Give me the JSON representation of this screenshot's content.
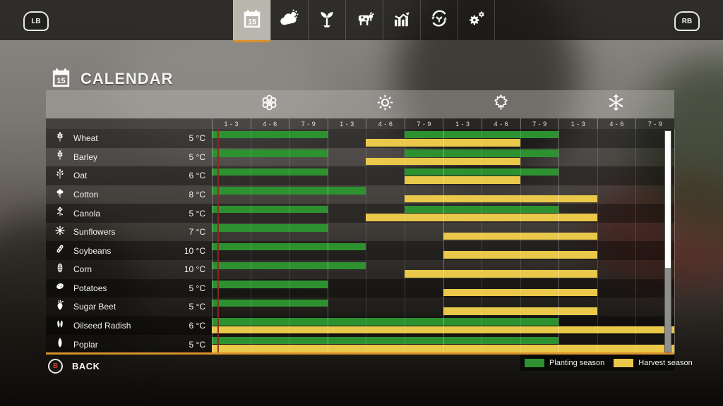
{
  "topbar": {
    "left_bumper_label": "LB",
    "right_bumper_label": "RB",
    "calendar_badge_day": "15",
    "tabs": [
      {
        "name": "calendar",
        "icon": "calendar-icon",
        "selected": true
      },
      {
        "name": "weather",
        "icon": "weather-icon",
        "selected": false
      },
      {
        "name": "crops",
        "icon": "seedling-icon",
        "selected": false
      },
      {
        "name": "animals",
        "icon": "cow-icon",
        "selected": false
      },
      {
        "name": "prices",
        "icon": "chart-icon",
        "selected": false
      },
      {
        "name": "rotation",
        "icon": "rotation-icon",
        "selected": false
      },
      {
        "name": "settings",
        "icon": "gears-icon",
        "selected": false
      }
    ]
  },
  "page": {
    "title": "CALENDAR"
  },
  "calendar": {
    "seasons": [
      {
        "name": "spring",
        "icon": "flower-icon"
      },
      {
        "name": "summer",
        "icon": "sun-icon"
      },
      {
        "name": "autumn",
        "icon": "maple-leaf-icon"
      },
      {
        "name": "winter",
        "icon": "snowflake-icon"
      }
    ],
    "month_segments": [
      "1 - 3",
      "4 - 6",
      "7 - 9"
    ],
    "periods_per_year": 12,
    "current_day_marker_period": 1,
    "crops": [
      {
        "name": "Wheat",
        "min_temp": "5 °C",
        "icon": "wheat-icon",
        "planting": [
          [
            1,
            3
          ],
          [
            6,
            9
          ]
        ],
        "harvest": [
          [
            5,
            8
          ]
        ]
      },
      {
        "name": "Barley",
        "min_temp": "5 °C",
        "icon": "barley-icon",
        "planting": [
          [
            1,
            3
          ],
          [
            6,
            9
          ]
        ],
        "harvest": [
          [
            5,
            8
          ]
        ]
      },
      {
        "name": "Oat",
        "min_temp": "6 °C",
        "icon": "oat-icon",
        "planting": [
          [
            1,
            3
          ],
          [
            6,
            9
          ]
        ],
        "harvest": [
          [
            6,
            8
          ]
        ]
      },
      {
        "name": "Cotton",
        "min_temp": "8 °C",
        "icon": "cotton-icon",
        "planting": [
          [
            1,
            4
          ]
        ],
        "harvest": [
          [
            6,
            10
          ]
        ]
      },
      {
        "name": "Canola",
        "min_temp": "5 °C",
        "icon": "canola-icon",
        "planting": [
          [
            1,
            3
          ],
          [
            6,
            9
          ]
        ],
        "harvest": [
          [
            5,
            10
          ]
        ]
      },
      {
        "name": "Sunflowers",
        "min_temp": "7 °C",
        "icon": "sunflower-icon",
        "planting": [
          [
            1,
            3
          ]
        ],
        "harvest": [
          [
            7,
            10
          ]
        ]
      },
      {
        "name": "Soybeans",
        "min_temp": "10 °C",
        "icon": "soybean-icon",
        "planting": [
          [
            1,
            4
          ]
        ],
        "harvest": [
          [
            7,
            10
          ]
        ]
      },
      {
        "name": "Corn",
        "min_temp": "10 °C",
        "icon": "corn-icon",
        "planting": [
          [
            1,
            4
          ]
        ],
        "harvest": [
          [
            6,
            10
          ]
        ]
      },
      {
        "name": "Potatoes",
        "min_temp": "5 °C",
        "icon": "potato-icon",
        "planting": [
          [
            1,
            3
          ]
        ],
        "harvest": [
          [
            7,
            10
          ]
        ]
      },
      {
        "name": "Sugar Beet",
        "min_temp": "5 °C",
        "icon": "sugar-beet-icon",
        "planting": [
          [
            1,
            3
          ]
        ],
        "harvest": [
          [
            7,
            10
          ]
        ]
      },
      {
        "name": "Oilseed Radish",
        "min_temp": "6 °C",
        "icon": "oilseed-radish-icon",
        "planting": [
          [
            1,
            9
          ]
        ],
        "harvest": [
          [
            1,
            12
          ]
        ]
      },
      {
        "name": "Poplar",
        "min_temp": "5 °C",
        "icon": "poplar-icon",
        "planting": [
          [
            1,
            9
          ]
        ],
        "harvest": [
          [
            1,
            12
          ]
        ]
      }
    ],
    "legend": [
      {
        "label": "Planting season",
        "color": "#2e9130"
      },
      {
        "label": "Harvest season",
        "color": "#e9c84a"
      }
    ]
  },
  "footer": {
    "back_label": "BACK",
    "back_button_glyph": "B"
  },
  "colors": {
    "planting": "#2e9130",
    "harvest": "#e9c84a",
    "accent_orange": "#d8912c",
    "current_day_marker": "#8b2b1d"
  }
}
